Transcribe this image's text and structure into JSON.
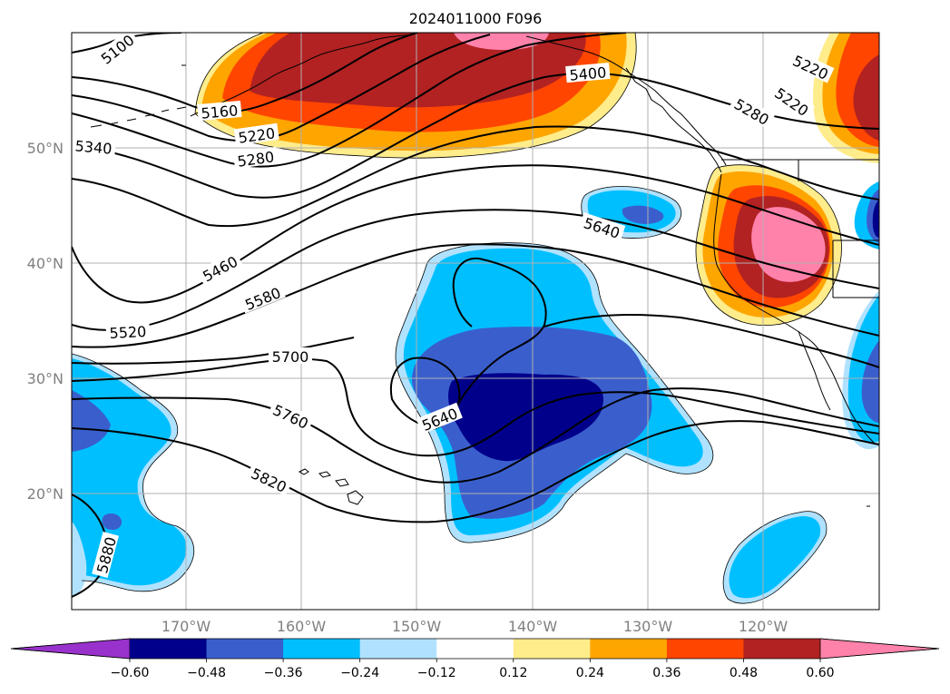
{
  "title": "2024011000 F096",
  "lat_labels": [
    "50°N",
    "40°N",
    "30°N",
    "20°N"
  ],
  "lon_labels": [
    "170°W",
    "160°W",
    "150°W",
    "140°W",
    "130°W",
    "120°W"
  ],
  "colorbar": {
    "ticks": [
      "−0.60",
      "−0.48",
      "−0.36",
      "−0.24",
      "−0.12",
      "0.12",
      "0.24",
      "0.36",
      "0.48",
      "0.60"
    ],
    "colors": [
      "#9932cc",
      "#00008b",
      "#3a5fcd",
      "#00bfff",
      "#b0e2ff",
      "#ffffff",
      "#ffec8b",
      "#ffa500",
      "#ff4500",
      "#b22222",
      "#ff82ab"
    ]
  },
  "contour_labels": [
    "5100",
    "5160",
    "5220",
    "5280",
    "5340",
    "5400",
    "5220",
    "5220",
    "5280",
    "5460",
    "5520",
    "5580",
    "5640",
    "5700",
    "5760",
    "5640",
    "5820",
    "5880"
  ]
}
